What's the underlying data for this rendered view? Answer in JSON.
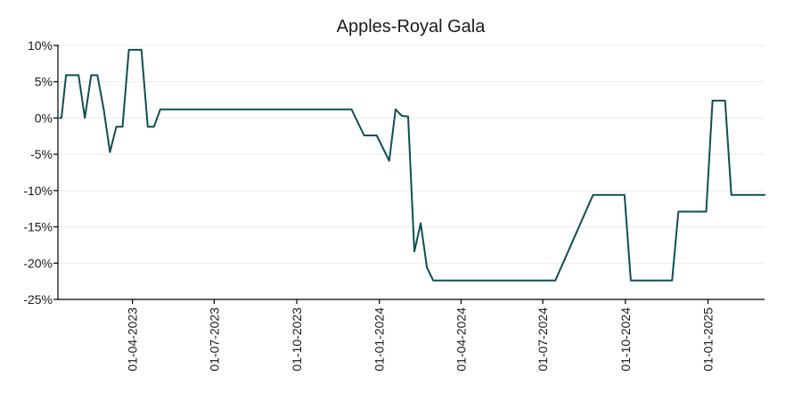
{
  "chart_data": {
    "type": "line",
    "title": "Apples-Royal Gala",
    "xlabel": "",
    "ylabel": "",
    "y_tick_labels": [
      "10%",
      "5%",
      "0%",
      "-5%",
      "-10%",
      "-15%",
      "-20%",
      "-25%"
    ],
    "y_tick_values": [
      10,
      5,
      0,
      -5,
      -10,
      -15,
      -20,
      -25
    ],
    "ylim": [
      -25,
      10
    ],
    "xlim": [
      "2023-01-08",
      "2025-03-05"
    ],
    "x_tick_labels": [
      "01-04-2023",
      "01-07-2023",
      "01-10-2023",
      "01-01-2024",
      "01-04-2024",
      "01-07-2024",
      "01-10-2024",
      "01-01-2025"
    ],
    "x_tick_dates": [
      "2023-04-01",
      "2023-07-01",
      "2023-10-01",
      "2024-01-01",
      "2024-04-01",
      "2024-07-01",
      "2024-10-01",
      "2025-01-01"
    ],
    "grid": true,
    "line_color": "#0f4f52",
    "series": [
      {
        "name": "",
        "points": [
          [
            "2023-01-10",
            0.0
          ],
          [
            "2023-01-12",
            0.0
          ],
          [
            "2023-01-17",
            5.9
          ],
          [
            "2023-01-24",
            5.9
          ],
          [
            "2023-01-31",
            5.9
          ],
          [
            "2023-02-07",
            0.0
          ],
          [
            "2023-02-14",
            5.9
          ],
          [
            "2023-02-21",
            5.9
          ],
          [
            "2023-02-28",
            1.2
          ],
          [
            "2023-03-07",
            -4.7
          ],
          [
            "2023-03-14",
            -1.2
          ],
          [
            "2023-03-21",
            -1.2
          ],
          [
            "2023-03-28",
            9.4
          ],
          [
            "2023-04-04",
            9.4
          ],
          [
            "2023-04-11",
            9.4
          ],
          [
            "2023-04-18",
            -1.2
          ],
          [
            "2023-04-25",
            -1.2
          ],
          [
            "2023-05-02",
            1.2
          ],
          [
            "2023-12-01",
            1.2
          ],
          [
            "2023-12-15",
            -2.4
          ],
          [
            "2023-12-29",
            -2.4
          ],
          [
            "2024-01-12",
            -5.9
          ],
          [
            "2024-01-19",
            1.2
          ],
          [
            "2024-01-26",
            0.3
          ],
          [
            "2024-02-02",
            0.2
          ],
          [
            "2024-02-09",
            -18.4
          ],
          [
            "2024-02-16",
            -14.5
          ],
          [
            "2024-02-23",
            -20.6
          ],
          [
            "2024-03-01",
            -22.4
          ],
          [
            "2024-07-15",
            -22.4
          ],
          [
            "2024-08-26",
            -10.6
          ],
          [
            "2024-09-30",
            -10.6
          ],
          [
            "2024-10-07",
            -22.4
          ],
          [
            "2024-11-22",
            -22.4
          ],
          [
            "2024-11-29",
            -12.9
          ],
          [
            "2024-12-30",
            -12.9
          ],
          [
            "2025-01-06",
            2.4
          ],
          [
            "2025-01-20",
            2.4
          ],
          [
            "2025-01-27",
            -10.6
          ],
          [
            "2025-03-05",
            -10.6
          ]
        ]
      }
    ]
  }
}
